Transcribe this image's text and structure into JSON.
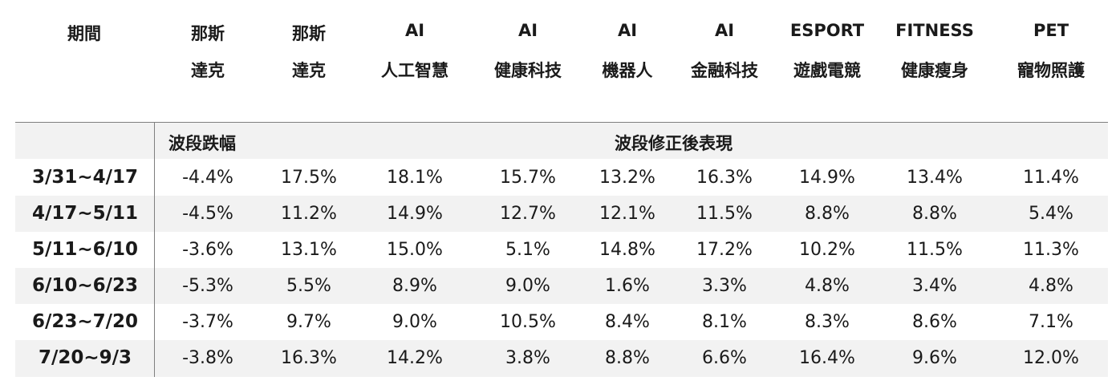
{
  "table": {
    "period_header": "期間",
    "columns": [
      {
        "l1": "那斯",
        "l2": "達克"
      },
      {
        "l1": "那斯",
        "l2": "達克"
      },
      {
        "l1": "AI",
        "l2": "人工智慧"
      },
      {
        "l1": "AI",
        "l2": "健康科技"
      },
      {
        "l1": "AI",
        "l2": "機器人"
      },
      {
        "l1": "AI",
        "l2": "金融科技"
      },
      {
        "l1": "ESPORT",
        "l2": "遊戲電競"
      },
      {
        "l1": "FITNESS",
        "l2": "健康瘦身"
      },
      {
        "l1": "PET",
        "l2": "寵物照護"
      }
    ],
    "subheader_left": "波段跌幅",
    "subheader_right": "波段修正後表現",
    "rows": [
      {
        "period": "3/31~4/17",
        "values": [
          "-4.4%",
          "17.5%",
          "18.1%",
          "15.7%",
          "13.2%",
          "16.3%",
          "14.9%",
          "13.4%",
          "11.4%"
        ]
      },
      {
        "period": "4/17~5/11",
        "values": [
          "-4.5%",
          "11.2%",
          "14.9%",
          "12.7%",
          "12.1%",
          "11.5%",
          "8.8%",
          "8.8%",
          "5.4%"
        ]
      },
      {
        "period": "5/11~6/10",
        "values": [
          "-3.6%",
          "13.1%",
          "15.0%",
          "5.1%",
          "14.8%",
          "17.2%",
          "10.2%",
          "11.5%",
          "11.3%"
        ]
      },
      {
        "period": "6/10~6/23",
        "values": [
          "-5.3%",
          "5.5%",
          "8.9%",
          "9.0%",
          "1.6%",
          "3.3%",
          "4.8%",
          "3.4%",
          "4.8%"
        ]
      },
      {
        "period": "6/23~7/20",
        "values": [
          "-3.7%",
          "9.7%",
          "9.0%",
          "10.5%",
          "8.4%",
          "8.1%",
          "8.3%",
          "8.6%",
          "7.1%"
        ]
      },
      {
        "period": "7/20~9/3",
        "values": [
          "-3.8%",
          "16.3%",
          "14.2%",
          "3.8%",
          "8.8%",
          "6.6%",
          "16.4%",
          "9.6%",
          "12.0%"
        ]
      }
    ]
  },
  "chart_data": {
    "type": "table",
    "header": [
      "期間",
      "那斯達克",
      "那斯達克",
      "AI人工智慧",
      "AI健康科技",
      "AI機器人",
      "AI金融科技",
      "ESPORT遊戲電競",
      "FITNESS健康瘦身",
      "PET寵物照護"
    ],
    "subheader": [
      "波段跌幅",
      "波段修正後表現"
    ],
    "rows": [
      [
        "3/31~4/17",
        "-4.4%",
        "17.5%",
        "18.1%",
        "15.7%",
        "13.2%",
        "16.3%",
        "14.9%",
        "13.4%",
        "11.4%"
      ],
      [
        "4/17~5/11",
        "-4.5%",
        "11.2%",
        "14.9%",
        "12.7%",
        "12.1%",
        "11.5%",
        "8.8%",
        "8.8%",
        "5.4%"
      ],
      [
        "5/11~6/10",
        "-3.6%",
        "13.1%",
        "15.0%",
        "5.1%",
        "14.8%",
        "17.2%",
        "10.2%",
        "11.5%",
        "11.3%"
      ],
      [
        "6/10~6/23",
        "-5.3%",
        "5.5%",
        "8.9%",
        "9.0%",
        "1.6%",
        "3.3%",
        "4.8%",
        "3.4%",
        "4.8%"
      ],
      [
        "6/23~7/20",
        "-3.7%",
        "9.7%",
        "9.0%",
        "10.5%",
        "8.4%",
        "8.1%",
        "8.3%",
        "8.6%",
        "7.1%"
      ],
      [
        "7/20~9/3",
        "-3.8%",
        "16.3%",
        "14.2%",
        "3.8%",
        "8.8%",
        "6.6%",
        "16.4%",
        "9.6%",
        "12.0%"
      ]
    ],
    "colors": {
      "band": "#f2f2f2",
      "rule": "#7f7f7f"
    }
  }
}
